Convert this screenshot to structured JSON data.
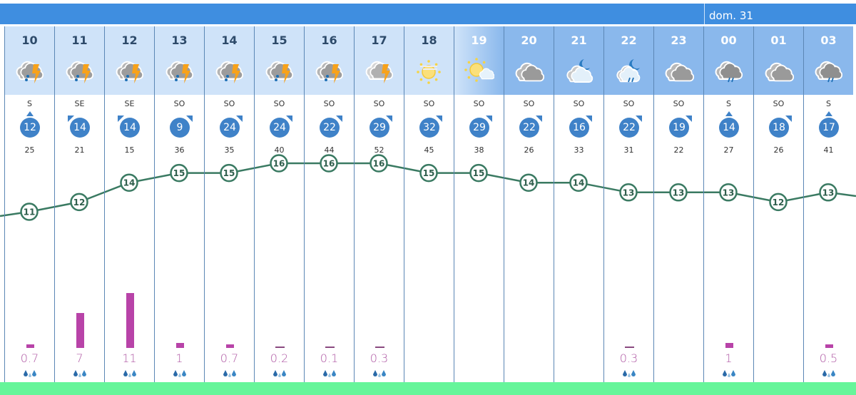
{
  "header": {
    "day_label": "dom. 31"
  },
  "colors": {
    "day_header": "#cfe3f9",
    "night_header": "#8ab8ec",
    "temp_line": "#3a7a62",
    "wind_circle": "#3f82c8",
    "precip_bar": "#b843a8",
    "bottom_bar": "#66f59a"
  },
  "hours": [
    {
      "hour": "10",
      "icon": "storm-rain",
      "period": "day",
      "wind_dir": "S",
      "wind": "12",
      "gust": "25",
      "temp": "11",
      "precip": "0.7"
    },
    {
      "hour": "11",
      "icon": "storm-rain",
      "period": "day",
      "wind_dir": "SE",
      "wind": "14",
      "gust": "21",
      "temp": "12",
      "precip": "7"
    },
    {
      "hour": "12",
      "icon": "storm-rain",
      "period": "day",
      "wind_dir": "SE",
      "wind": "14",
      "gust": "15",
      "temp": "14",
      "precip": "11"
    },
    {
      "hour": "13",
      "icon": "storm-rain",
      "period": "day",
      "wind_dir": "SO",
      "wind": "9",
      "gust": "36",
      "temp": "15",
      "precip": "1"
    },
    {
      "hour": "14",
      "icon": "storm-rain",
      "period": "day",
      "wind_dir": "SO",
      "wind": "24",
      "gust": "35",
      "temp": "15",
      "precip": "0.7"
    },
    {
      "hour": "15",
      "icon": "storm-rain",
      "period": "day",
      "wind_dir": "SO",
      "wind": "24",
      "gust": "40",
      "temp": "16",
      "precip": "0.2"
    },
    {
      "hour": "16",
      "icon": "storm-rain",
      "period": "day",
      "wind_dir": "SO",
      "wind": "22",
      "gust": "44",
      "temp": "16",
      "precip": "0.1"
    },
    {
      "hour": "17",
      "icon": "storm-light",
      "period": "day",
      "wind_dir": "SO",
      "wind": "29",
      "gust": "52",
      "temp": "16",
      "precip": "0.3"
    },
    {
      "hour": "18",
      "icon": "sun-haze",
      "period": "day",
      "wind_dir": "SO",
      "wind": "32",
      "gust": "45",
      "temp": "15",
      "precip": ""
    },
    {
      "hour": "19",
      "icon": "sun-cloud",
      "period": "dusk",
      "wind_dir": "SO",
      "wind": "29",
      "gust": "38",
      "temp": "15",
      "precip": ""
    },
    {
      "hour": "20",
      "icon": "cloudy",
      "period": "night",
      "wind_dir": "SO",
      "wind": "22",
      "gust": "26",
      "temp": "14",
      "precip": ""
    },
    {
      "hour": "21",
      "icon": "moon-cloud",
      "period": "night",
      "wind_dir": "SO",
      "wind": "16",
      "gust": "33",
      "temp": "14",
      "precip": ""
    },
    {
      "hour": "22",
      "icon": "moon-cloud-rain",
      "period": "night",
      "wind_dir": "SO",
      "wind": "22",
      "gust": "31",
      "temp": "13",
      "precip": "0.3"
    },
    {
      "hour": "23",
      "icon": "cloudy",
      "period": "night",
      "wind_dir": "SO",
      "wind": "19",
      "gust": "22",
      "temp": "13",
      "precip": ""
    },
    {
      "hour": "00",
      "icon": "cloud-rain",
      "period": "night",
      "wind_dir": "S",
      "wind": "14",
      "gust": "27",
      "temp": "13",
      "precip": "1"
    },
    {
      "hour": "01",
      "icon": "cloudy",
      "period": "night",
      "wind_dir": "SO",
      "wind": "18",
      "gust": "26",
      "temp": "12",
      "precip": ""
    },
    {
      "hour": "03",
      "icon": "cloud-rain",
      "period": "night",
      "wind_dir": "S",
      "wind": "17",
      "gust": "41",
      "temp": "13",
      "precip": "0.5"
    }
  ]
}
